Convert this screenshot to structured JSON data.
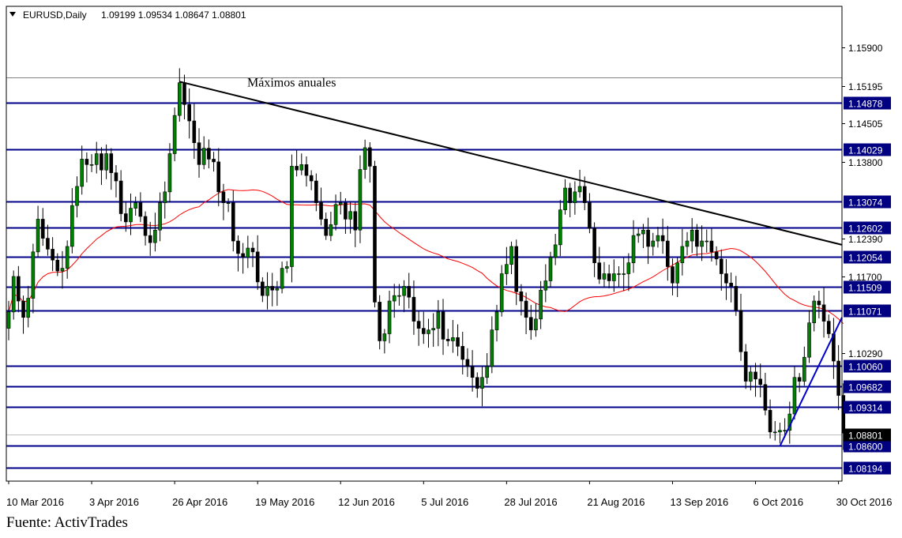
{
  "header": {
    "triangle_icon": "triangle-down-icon",
    "symbol_label": "EURUSD,Daily",
    "ohlc": "1.09199 1.09534 1.08647 1.08801"
  },
  "source": "Fuente: ActivTrades",
  "colors": {
    "background": "#ffffff",
    "frame": "#000000",
    "grid_line": "#00008b",
    "bull_body": "#008000",
    "bear_body": "#000000",
    "wick": "#000000",
    "moving_average": "#ff0000",
    "trend_line": "#000000",
    "support_trend": "#0000cd",
    "price_marker_bg": "#000080",
    "price_marker_text": "#ffffff",
    "current_price_bg": "#000000"
  },
  "chart_data": {
    "type": "candlestick",
    "title": "EURUSD,Daily",
    "ylim": [
      1.0795,
      1.1665
    ],
    "annotation": "Máximos anuales",
    "y_tick_labels": [
      {
        "value": 1.159,
        "label": "1.15900"
      },
      {
        "value": 1.15195,
        "label": "1.15195"
      },
      {
        "value": 1.14505,
        "label": "1.14505"
      },
      {
        "value": 1.138,
        "label": "1.13800"
      },
      {
        "value": 1.1239,
        "label": "1.12390"
      },
      {
        "value": 1.117,
        "label": "1.11700"
      },
      {
        "value": 1.1029,
        "label": "1.10290"
      }
    ],
    "horizontal_levels": [
      {
        "value": 1.14878,
        "label": "1.14878"
      },
      {
        "value": 1.14029,
        "label": "1.14029"
      },
      {
        "value": 1.13074,
        "label": "1.13074"
      },
      {
        "value": 1.12602,
        "label": "1.12602"
      },
      {
        "value": 1.12054,
        "label": "1.12054"
      },
      {
        "value": 1.11509,
        "label": "1.11509"
      },
      {
        "value": 1.11071,
        "label": "1.11071"
      },
      {
        "value": 1.1006,
        "label": "1.10060"
      },
      {
        "value": 1.09682,
        "label": "1.09682"
      },
      {
        "value": 1.09314,
        "label": "1.09314"
      },
      {
        "value": 1.086,
        "label": "1.08600"
      },
      {
        "value": 1.08194,
        "label": "1.08194"
      }
    ],
    "reference_line": 1.1535,
    "current_price": {
      "value": 1.08801,
      "label": "1.08801"
    },
    "x_tick_labels": [
      {
        "index": 0,
        "label": "10 Mar 2016"
      },
      {
        "index": 17,
        "label": "3 Apr 2016"
      },
      {
        "index": 34,
        "label": "26 Apr 2016"
      },
      {
        "index": 51,
        "label": "19 May 2016"
      },
      {
        "index": 68,
        "label": "12 Jun 2016"
      },
      {
        "index": 85,
        "label": "5 Jul 2016"
      },
      {
        "index": 102,
        "label": "28 Jul 2016"
      },
      {
        "index": 119,
        "label": "21 Aug 2016"
      },
      {
        "index": 136,
        "label": "13 Sep 2016"
      },
      {
        "index": 153,
        "label": "6 Oct 2016"
      },
      {
        "index": 170,
        "label": "30 Oct 2016"
      }
    ],
    "close_series": [
      1.1105,
      1.117,
      1.1125,
      1.1095,
      1.113,
      1.1215,
      1.1275,
      1.124,
      1.122,
      1.12,
      1.118,
      1.1185,
      1.1225,
      1.13,
      1.1335,
      1.1385,
      1.1375,
      1.1375,
      1.1395,
      1.1365,
      1.1395,
      1.136,
      1.1345,
      1.1285,
      1.127,
      1.1295,
      1.1305,
      1.128,
      1.1245,
      1.1232,
      1.1255,
      1.1305,
      1.1325,
      1.1395,
      1.1465,
      1.1525,
      1.1485,
      1.1455,
      1.1415,
      1.1375,
      1.1405,
      1.1385,
      1.138,
      1.1325,
      1.1305,
      1.1305,
      1.1235,
      1.1212,
      1.1205,
      1.1222,
      1.1215,
      1.116,
      1.1135,
      1.1152,
      1.1145,
      1.1148,
      1.1185,
      1.1188,
      1.1372,
      1.1365,
      1.1375,
      1.1355,
      1.1345,
      1.1305,
      1.1275,
      1.1245,
      1.1265,
      1.1302,
      1.1305,
      1.1275,
      1.1289,
      1.1255,
      1.1366,
      1.1406,
      1.1372,
      1.1123,
      1.1052,
      1.1065,
      1.1125,
      1.1135,
      1.1135,
      1.1152,
      1.1132,
      1.1088,
      1.1075,
      1.1065,
      1.1072,
      1.1075,
      1.1105,
      1.1055,
      1.1052,
      1.1058,
      1.1042,
      1.1018,
      1.1005,
      1.0985,
      1.0965,
      1.0985,
      1.1005,
      1.1072,
      1.1105,
      1.1175,
      1.1192,
      1.1225,
      1.1142,
      1.1125,
      1.1095,
      1.1072,
      1.1092,
      1.1145,
      1.1162,
      1.1205,
      1.1228,
      1.1292,
      1.1332,
      1.1305,
      1.1325,
      1.1335,
      1.1305,
      1.1258,
      1.1195,
      1.1165,
      1.1175,
      1.1162,
      1.1175,
      1.1175,
      1.1175,
      1.1195,
      1.1245,
      1.1248,
      1.1255,
      1.1225,
      1.1235,
      1.1245,
      1.1235,
      1.1188,
      1.1158,
      1.1195,
      1.1225,
      1.1235,
      1.1255,
      1.1225,
      1.1235,
      1.1235,
      1.1215,
      1.1202,
      1.1175,
      1.1158,
      1.1152,
      1.1108,
      1.1032,
      1.0978,
      1.0995,
      1.0982,
      1.0972,
      1.0925,
      1.0885,
      1.0885,
      1.0888,
      1.0888,
      1.0918,
      1.0985,
      1.0978,
      1.1022,
      1.1085,
      1.1125,
      1.1118,
      1.1088,
      1.1065,
      1.1015,
      1.0952,
      1.0883
    ]
  }
}
